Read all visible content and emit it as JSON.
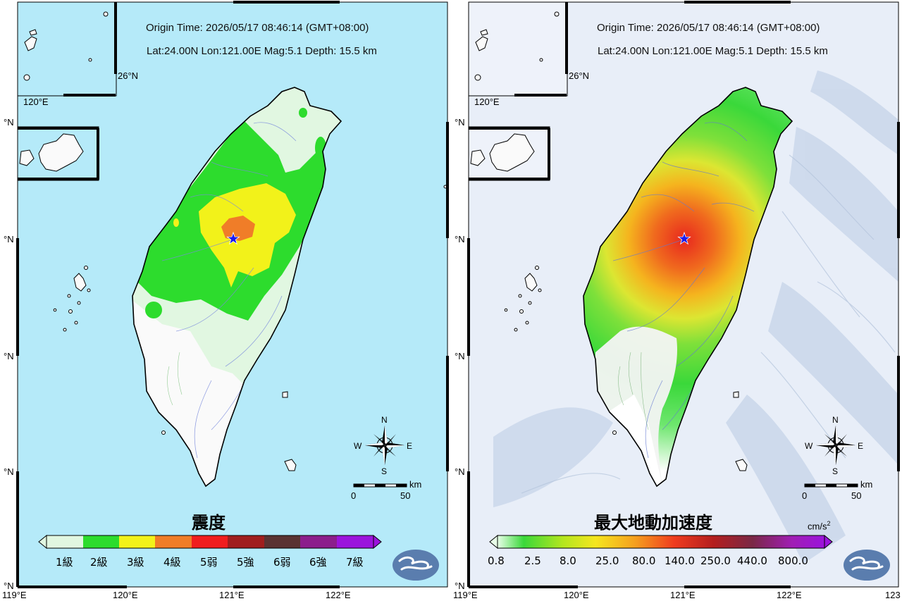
{
  "event": {
    "origin_time": "Origin Time:  2026/05/17  08:46:14  (GMT+08:00)",
    "location": "Lat:24.00N  Lon:121.00E  Mag:5.1  Depth: 15.5 km"
  },
  "axis": {
    "bottom_labels": [
      "119°E",
      "120°E",
      "121°E",
      "122°E",
      "123"
    ],
    "side_labels": [
      "°N",
      "°N",
      "°N",
      "°N",
      "°N"
    ],
    "inset_lon": "120°E",
    "inset_lat": "26°N"
  },
  "compass": {
    "n": "N",
    "s": "S",
    "e": "E",
    "w": "W"
  },
  "scale": {
    "unit": "km",
    "zero": "0",
    "fifty": "50"
  },
  "panels": {
    "intensity": {
      "title": "震度",
      "legend": [
        "1級",
        "2級",
        "3級",
        "4級",
        "5弱",
        "5強",
        "6弱",
        "6強",
        "7級"
      ],
      "colors": [
        "#e1f7e1",
        "#2ddc2d",
        "#f2f21a",
        "#f07d28",
        "#f01e1e",
        "#a01e1e",
        "#5a3232",
        "#8c1e8c",
        "#9b14dc"
      ]
    },
    "pga": {
      "title": "最大地動加速度",
      "unit": "cm/s",
      "unit_exp": "2",
      "ticks": [
        "0.8",
        "2.5",
        "8.0",
        "25.0",
        "80.0",
        "140.0",
        "250.0",
        "440.0",
        "800.0"
      ]
    }
  },
  "colors": {
    "sea": "#b5eaf9",
    "sea_relief": "#e8eef8",
    "epicenter": "#1a1aee"
  }
}
